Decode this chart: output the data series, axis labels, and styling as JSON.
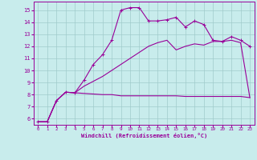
{
  "title": "",
  "xlabel": "Windchill (Refroidissement éolien,°C)",
  "ylabel": "",
  "xlim": [
    -0.5,
    23.5
  ],
  "ylim": [
    5.5,
    15.7
  ],
  "xticks": [
    0,
    1,
    2,
    3,
    4,
    5,
    6,
    7,
    8,
    9,
    10,
    11,
    12,
    13,
    14,
    15,
    16,
    17,
    18,
    19,
    20,
    21,
    22,
    23
  ],
  "yticks": [
    6,
    7,
    8,
    9,
    10,
    11,
    12,
    13,
    14,
    15
  ],
  "bg_color": "#c8ecec",
  "line_color": "#990099",
  "grid_color": "#a0cccc",
  "line1_x": [
    0,
    1,
    2,
    3,
    4,
    5,
    6,
    7,
    8,
    9,
    10,
    11,
    12,
    13,
    14,
    15,
    16,
    17,
    18,
    19,
    20,
    21,
    22,
    23
  ],
  "line1_y": [
    5.75,
    5.75,
    7.5,
    8.2,
    8.15,
    8.1,
    8.05,
    8.0,
    8.0,
    7.9,
    7.9,
    7.9,
    7.9,
    7.9,
    7.9,
    7.9,
    7.85,
    7.85,
    7.85,
    7.85,
    7.85,
    7.85,
    7.85,
    7.75
  ],
  "line2_x": [
    0,
    1,
    2,
    3,
    4,
    5,
    6,
    7,
    8,
    9,
    10,
    11,
    12,
    13,
    14,
    15,
    16,
    17,
    18,
    19,
    20,
    21,
    22,
    23
  ],
  "line2_y": [
    5.75,
    5.75,
    7.5,
    8.2,
    8.15,
    9.2,
    10.5,
    11.3,
    12.5,
    15.0,
    15.2,
    15.2,
    14.1,
    14.1,
    14.2,
    14.4,
    13.6,
    14.1,
    13.8,
    12.5,
    12.4,
    12.8,
    12.5,
    12.0
  ],
  "line3_x": [
    0,
    1,
    2,
    3,
    4,
    5,
    6,
    7,
    8,
    9,
    10,
    11,
    12,
    13,
    14,
    15,
    16,
    17,
    18,
    19,
    20,
    21,
    22,
    23
  ],
  "line3_y": [
    5.75,
    5.75,
    7.5,
    8.2,
    8.15,
    8.7,
    9.1,
    9.5,
    10.0,
    10.5,
    11.0,
    11.5,
    12.0,
    12.3,
    12.5,
    11.7,
    12.0,
    12.2,
    12.1,
    12.4,
    12.4,
    12.5,
    12.3,
    7.75
  ]
}
